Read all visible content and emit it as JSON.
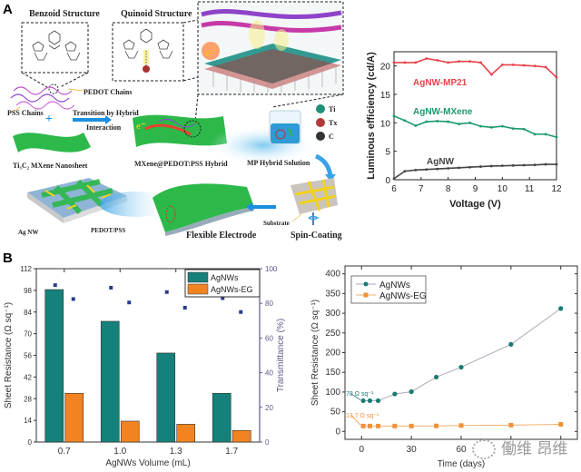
{
  "panels": {
    "a": "A",
    "b": "B"
  },
  "schematic": {
    "benzoid_title": "Benzoid Structure",
    "quinoid_title": "Quinoid Structure",
    "pedot_chains": "PEDOT  Chains",
    "pss_chains": "PSS Chains",
    "transition_label_1": "Transition by Hybrid",
    "transition_label_2": "Interaction",
    "nanosheet_label": "Ti₃C₂ MXene Nanosheet",
    "hybrid_label": "MXene@PEDOT:PSS Hybrid",
    "solution_label": "MP Hybrid Solution",
    "legend": [
      {
        "label": "Ti",
        "color": "#1f8f7a"
      },
      {
        "label": "Tx",
        "color": "#b33a3a"
      },
      {
        "label": "C",
        "color": "#333333"
      }
    ],
    "agnw_label": "Ag NW",
    "pedotpss_label": "PEDOT/PSS",
    "flexible_label": "Flexible Electrode",
    "substrate_label": "Substrate",
    "spin_label": "Spin-Coating",
    "electron_symbol": "e⁻"
  },
  "chart_data": [
    {
      "id": "luminous",
      "type": "line",
      "title": "",
      "xlabel": "Voltage (V)",
      "ylabel": "Luminous efficiency (cd/A)",
      "xlim": [
        6,
        12
      ],
      "ylim": [
        0,
        22.5
      ],
      "xticks": [
        6,
        7,
        8,
        9,
        10,
        11,
        12
      ],
      "yticks": [
        0,
        5,
        10,
        15,
        20
      ],
      "x": [
        6.0,
        6.4,
        6.8,
        7.2,
        7.6,
        8.0,
        8.4,
        8.8,
        9.2,
        9.6,
        10.0,
        10.4,
        10.8,
        11.2,
        11.6,
        12.0
      ],
      "series": [
        {
          "name": "AgNW-MP21",
          "color": "#e8424a",
          "values": [
            20.6,
            20.6,
            20.6,
            21.3,
            21.0,
            20.6,
            20.8,
            20.8,
            20.6,
            18.5,
            20.2,
            20.2,
            20.1,
            20.0,
            19.8,
            18.0
          ]
        },
        {
          "name": "AgNW-MXene",
          "color": "#1c9a6a",
          "values": [
            11.2,
            10.4,
            9.5,
            10.2,
            10.3,
            10.2,
            9.8,
            10.0,
            9.4,
            9.2,
            9.4,
            9.0,
            8.9,
            8.0,
            8.0,
            7.5
          ]
        },
        {
          "name": "AgNW",
          "color": "#444444",
          "values": [
            0.2,
            1.5,
            1.7,
            1.8,
            1.9,
            2.0,
            2.1,
            2.2,
            2.3,
            2.4,
            2.45,
            2.5,
            2.55,
            2.6,
            2.7,
            2.7
          ]
        }
      ],
      "grid": false
    },
    {
      "id": "volume",
      "type": "bar",
      "xlabel": "AgNWs Volume (mL)",
      "ylabel": "Sheet Resistance (Ω sq⁻¹)",
      "y2label": "Transmittance (%)",
      "categories": [
        "0.7",
        "1.0",
        "1.3",
        "1.7"
      ],
      "ylim": [
        0,
        112
      ],
      "yticks": [
        0,
        14,
        28,
        42,
        56,
        70,
        84,
        98,
        112
      ],
      "y2lim": [
        0,
        100
      ],
      "y2ticks": [
        0,
        20,
        40,
        60,
        80,
        100
      ],
      "series": [
        {
          "name": "AgNWs",
          "color": "#16807a",
          "values": [
            98.5,
            78,
            57.5,
            31.5
          ]
        },
        {
          "name": "AgNWs-EG",
          "color": "#f28322",
          "values": [
            31.5,
            13.5,
            11.5,
            7.5
          ]
        }
      ],
      "transmittance": {
        "color": "#2b3b8a",
        "AgNWs": [
          90.5,
          89,
          86.5,
          83
        ],
        "AgNWs-EG": [
          82.5,
          80.5,
          77.5,
          75
        ]
      },
      "legend": "top-right",
      "grid": false
    },
    {
      "id": "time",
      "type": "line",
      "xlabel": "Time (days)",
      "ylabel": "Sheet Resistance (Ω sq⁻¹)",
      "xlim": [
        -10,
        130
      ],
      "xticks": [
        0,
        30,
        60,
        90,
        120
      ],
      "ylim": [
        -20,
        420
      ],
      "yticks": [
        0,
        50,
        100,
        150,
        200,
        250,
        300,
        350,
        400
      ],
      "series": [
        {
          "name": "AgNWs",
          "color": "#1a7a74",
          "marker": "circle",
          "x": [
            1,
            5,
            10,
            20,
            30,
            45,
            60,
            90,
            120
          ],
          "values": [
            78,
            78,
            78,
            95,
            101,
            138,
            163,
            221,
            312
          ]
        },
        {
          "name": "AgNWs-EG",
          "color": "#f0923a",
          "marker": "square",
          "x": [
            1,
            5,
            10,
            20,
            30,
            45,
            60,
            90,
            120
          ],
          "values": [
            13.7,
            13.7,
            13.7,
            13.7,
            13.7,
            14,
            15,
            16,
            18
          ]
        }
      ],
      "annotations": [
        {
          "text": "78 Ω sq⁻¹",
          "color": "#1a7a74",
          "target_series": "AgNWs"
        },
        {
          "text": "13.7 Ω sq⁻¹",
          "color": "#f0923a",
          "target_series": "AgNWs-EG"
        }
      ],
      "legend": "top-left",
      "grid": false
    }
  ],
  "watermark": "働维 昂维"
}
